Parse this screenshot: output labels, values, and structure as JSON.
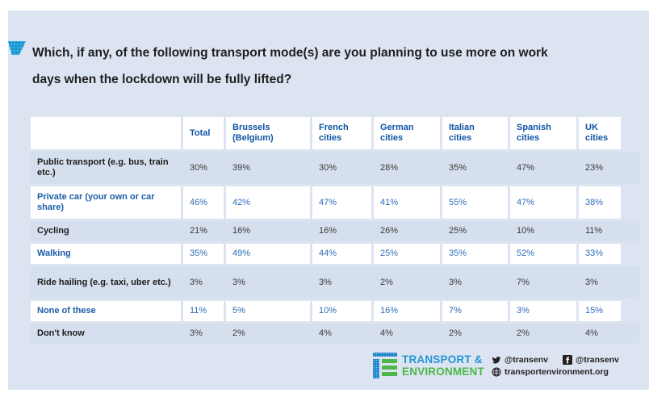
{
  "title": {
    "line1": "Which, if any, of the following transport mode(s) are you planning to use more on work",
    "line2": "days when the lockdown will be fully lifted?"
  },
  "colors": {
    "accent_cyan": "#29abe2",
    "panel_bg": "#dce4f2",
    "stripe_bg": "#d6dfed",
    "header_blue": "#0f55a4",
    "value_blue": "#2e6db8",
    "logo_blue": "#2596d3",
    "logo_green": "#4eb748"
  },
  "table": {
    "columns": [
      "",
      "Total",
      "Brussels\n(Belgium)",
      "French\ncities",
      "German\ncities",
      "Italian\ncities",
      "Spanish\ncities",
      "UK\ncities"
    ],
    "rows": [
      {
        "label": "Public transport (e.g. bus, train etc.)",
        "values": [
          "30%",
          "39%",
          "30%",
          "28%",
          "35%",
          "47%",
          "23%"
        ]
      },
      {
        "label": "Private car (your own or car share)",
        "values": [
          "46%",
          "42%",
          "47%",
          "41%",
          "55%",
          "47%",
          "38%"
        ]
      },
      {
        "label": "Cycling",
        "values": [
          "21%",
          "16%",
          "16%",
          "26%",
          "25%",
          "10%",
          "11%"
        ]
      },
      {
        "label": "Walking",
        "values": [
          "35%",
          "49%",
          "44%",
          "25%",
          "35%",
          "52%",
          "33%"
        ]
      },
      {
        "label": "Ride hailing (e.g. taxi, uber etc.)",
        "values": [
          "3%",
          "3%",
          "3%",
          "2%",
          "3%",
          "7%",
          "3%"
        ]
      },
      {
        "label": "None of these",
        "values": [
          "11%",
          "5%",
          "10%",
          "16%",
          "7%",
          "3%",
          "15%"
        ]
      },
      {
        "label": "Don't know",
        "values": [
          "3%",
          "2%",
          "4%",
          "4%",
          "2%",
          "2%",
          "4%"
        ]
      }
    ]
  },
  "footer": {
    "logo_line1": "TRANSPORT &",
    "logo_line2": "ENVIRONMENT",
    "twitter": "@transenv",
    "facebook": "@transenv",
    "website": "transportenvironment.org"
  }
}
